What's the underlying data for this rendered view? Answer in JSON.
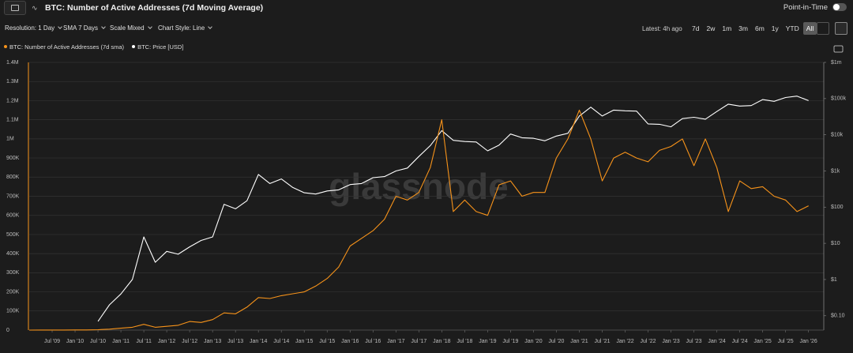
{
  "ui": {
    "point_in_time": "Point-in-Time",
    "controls": [
      "Resolution: 1 Day",
      "SMA 7 Days",
      "Scale Mixed",
      "Chart Style: Line"
    ],
    "latest": "Latest: 4h ago",
    "ranges": [
      "7d",
      "2w",
      "1m",
      "3m",
      "6m",
      "1y",
      "YTD",
      "All"
    ]
  },
  "chart_data": {
    "type": "line",
    "title": "BTC: Number of Active Addresses (7d Moving Average)",
    "watermark": "glassnode",
    "x": [
      "2009-01",
      "2009-04",
      "2009-07",
      "2009-10",
      "2010-01",
      "2010-04",
      "2010-07",
      "2010-10",
      "2011-01",
      "2011-04",
      "2011-07",
      "2011-10",
      "2012-01",
      "2012-04",
      "2012-07",
      "2012-10",
      "2013-01",
      "2013-04",
      "2013-07",
      "2013-10",
      "2014-01",
      "2014-04",
      "2014-07",
      "2014-10",
      "2015-01",
      "2015-04",
      "2015-07",
      "2015-10",
      "2016-01",
      "2016-04",
      "2016-07",
      "2016-10",
      "2017-01",
      "2017-04",
      "2017-07",
      "2017-10",
      "2018-01",
      "2018-04",
      "2018-07",
      "2018-10",
      "2019-01",
      "2019-04",
      "2019-07",
      "2019-10",
      "2020-01",
      "2020-04",
      "2020-07",
      "2020-10",
      "2021-01",
      "2021-04",
      "2021-07",
      "2021-10",
      "2022-01",
      "2022-04",
      "2022-07",
      "2022-10",
      "2023-01",
      "2023-04",
      "2023-07",
      "2023-10",
      "2024-01",
      "2024-04",
      "2024-07",
      "2024-10",
      "2025-01",
      "2025-04",
      "2025-07",
      "2025-10",
      "2026-01"
    ],
    "series": [
      {
        "name": "BTC: Number of Active Addresses (7d sma)",
        "color": "#f7931a",
        "values": [
          100,
          300,
          500,
          600,
          700,
          1000,
          2000,
          5000,
          10000,
          15000,
          30000,
          15000,
          20000,
          25000,
          45000,
          40000,
          55000,
          90000,
          85000,
          120000,
          170000,
          165000,
          180000,
          190000,
          200000,
          230000,
          270000,
          330000,
          440000,
          480000,
          520000,
          580000,
          700000,
          680000,
          720000,
          850000,
          1100000,
          620000,
          680000,
          620000,
          600000,
          760000,
          780000,
          700000,
          720000,
          720000,
          900000,
          1000000,
          1150000,
          1000000,
          780000,
          900000,
          930000,
          900000,
          880000,
          940000,
          960000,
          1000000,
          860000,
          1000000,
          850000,
          620000,
          780000,
          740000,
          750000,
          700000,
          680000,
          620000,
          650000
        ]
      },
      {
        "name": "BTC: Price [USD]",
        "color": "#ffffff",
        "axis": "y2",
        "values": [
          null,
          null,
          null,
          null,
          null,
          null,
          0.07,
          0.2,
          0.4,
          1,
          15,
          3,
          6,
          5,
          8,
          12,
          15,
          120,
          90,
          150,
          800,
          450,
          600,
          350,
          250,
          230,
          280,
          300,
          420,
          450,
          650,
          700,
          1000,
          1200,
          2500,
          5000,
          13000,
          7000,
          6500,
          6300,
          3600,
          5200,
          10500,
          8300,
          8000,
          6800,
          9200,
          11000,
          33000,
          58000,
          33000,
          48000,
          46000,
          45000,
          20000,
          19500,
          16600,
          28000,
          30500,
          27000,
          44000,
          70000,
          62000,
          64000,
          94000,
          84000,
          107000,
          117000,
          88000
        ]
      }
    ],
    "xlim": [
      "2009-01",
      "2026-05"
    ],
    "xticks": [
      {
        "value": "2009-07",
        "label": "Jul '09"
      },
      {
        "value": "2010-01",
        "label": "Jan '10"
      },
      {
        "value": "2010-07",
        "label": "Jul '10"
      },
      {
        "value": "2011-01",
        "label": "Jan '11"
      },
      {
        "value": "2011-07",
        "label": "Jul '11"
      },
      {
        "value": "2012-01",
        "label": "Jan '12"
      },
      {
        "value": "2012-07",
        "label": "Jul '12"
      },
      {
        "value": "2013-01",
        "label": "Jan '13"
      },
      {
        "value": "2013-07",
        "label": "Jul '13"
      },
      {
        "value": "2014-01",
        "label": "Jan '14"
      },
      {
        "value": "2014-07",
        "label": "Jul '14"
      },
      {
        "value": "2015-01",
        "label": "Jan '15"
      },
      {
        "value": "2015-07",
        "label": "Jul '15"
      },
      {
        "value": "2016-01",
        "label": "Jan '16"
      },
      {
        "value": "2016-07",
        "label": "Jul '16"
      },
      {
        "value": "2017-01",
        "label": "Jan '17"
      },
      {
        "value": "2017-07",
        "label": "Jul '17"
      },
      {
        "value": "2018-01",
        "label": "Jan '18"
      },
      {
        "value": "2018-07",
        "label": "Jul '18"
      },
      {
        "value": "2019-01",
        "label": "Jan '19"
      },
      {
        "value": "2019-07",
        "label": "Jul '19"
      },
      {
        "value": "2020-01",
        "label": "Jan '20"
      },
      {
        "value": "2020-07",
        "label": "Jul '20"
      },
      {
        "value": "2021-01",
        "label": "Jan '21"
      },
      {
        "value": "2021-07",
        "label": "Jul '21"
      },
      {
        "value": "2022-01",
        "label": "Jan '22"
      },
      {
        "value": "2022-07",
        "label": "Jul '22"
      },
      {
        "value": "2023-01",
        "label": "Jan '23"
      },
      {
        "value": "2023-07",
        "label": "Jul '23"
      },
      {
        "value": "2024-01",
        "label": "Jan '24"
      },
      {
        "value": "2024-07",
        "label": "Jul '24"
      },
      {
        "value": "2025-01",
        "label": "Jan '25"
      },
      {
        "value": "2025-07",
        "label": "Jul '25"
      },
      {
        "value": "2026-01",
        "label": "Jan '26"
      }
    ],
    "ylim": [
      0,
      1400000
    ],
    "yticks": [
      0,
      {
        "value": 100000,
        "label": "100K"
      },
      {
        "value": 200000,
        "label": "200K"
      },
      {
        "value": 300000,
        "label": "300K"
      },
      {
        "value": 400000,
        "label": "400K"
      },
      {
        "value": 500000,
        "label": "500K"
      },
      {
        "value": 600000,
        "label": "600K"
      },
      {
        "value": 700000,
        "label": "700K"
      },
      {
        "value": 800000,
        "label": "800K"
      },
      {
        "value": 900000,
        "label": "900K"
      },
      {
        "value": 1000000,
        "label": "1M"
      },
      {
        "value": 1100000,
        "label": "1.1M"
      },
      {
        "value": 1200000,
        "label": "1.2M"
      },
      {
        "value": 1300000,
        "label": "1.3M"
      },
      {
        "value": 1400000,
        "label": "1.4M"
      }
    ],
    "y2lim": [
      0.04,
      1000000
    ],
    "y2scale": "log",
    "y2ticks": [
      {
        "value": 0.1,
        "label": "$0.10"
      },
      {
        "value": 1,
        "label": "$1"
      },
      {
        "value": 10,
        "label": "$10"
      },
      {
        "value": 100,
        "label": "$100"
      },
      {
        "value": 1000,
        "label": "$1k"
      },
      {
        "value": 10000,
        "label": "$10k"
      },
      {
        "value": 100000,
        "label": "$100k"
      },
      {
        "value": 1000000,
        "label": "$1m"
      }
    ],
    "grid": true
  }
}
